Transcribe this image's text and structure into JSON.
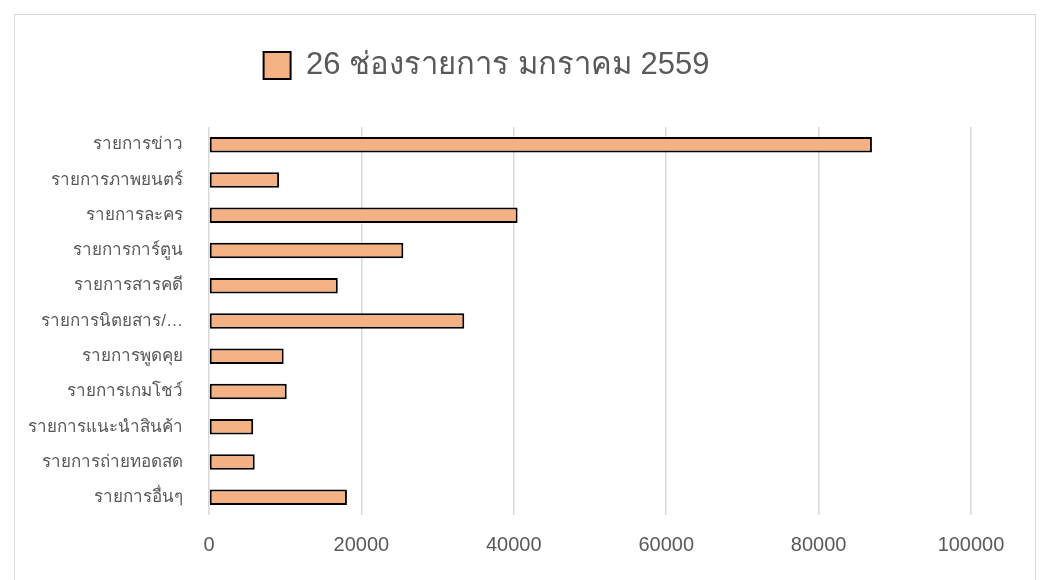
{
  "chart_data": {
    "type": "bar",
    "orientation": "horizontal",
    "categories": [
      "รายการข่าว",
      "รายการภาพยนตร์",
      "รายการละคร",
      "รายการการ์ตูน",
      "รายการสารคดี",
      "รายการนิตยสาร/…",
      "รายการพูดคุย",
      "รายการเกมโชว์",
      "รายการแนะนำสินค้า",
      "รายการถ่ายทอดสด",
      "รายการอื่นๆ"
    ],
    "series": [
      {
        "name": "26 ช่องรายการ มกราคม 2559",
        "color": "#f4b183",
        "values": [
          87000,
          9200,
          40500,
          25500,
          16900,
          33500,
          9800,
          10200,
          5800,
          6000,
          18100
        ]
      }
    ],
    "xlim": [
      0,
      100000
    ],
    "xticks": [
      0,
      20000,
      40000,
      60000,
      80000,
      100000
    ],
    "grid": "x",
    "legend": "top"
  }
}
